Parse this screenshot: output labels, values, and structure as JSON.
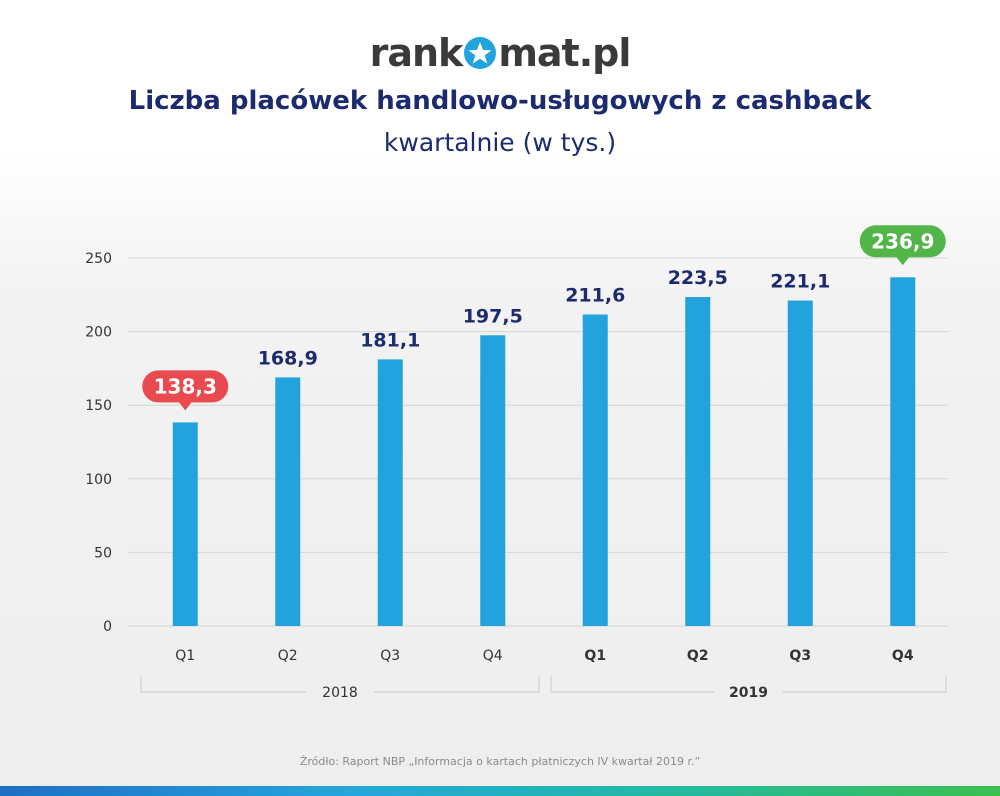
{
  "logo": {
    "left": "rank",
    "right": "mat.pl",
    "icon": "star-icon"
  },
  "title": "Liczba placówek handlowo-usługowych z cashback",
  "subtitle": "kwartalnie (w tys.)",
  "source": "Źródło: Raport NBP „Informacja o kartach płatniczych IV kwartał 2019 r.”",
  "colors": {
    "bar": "#22a3de",
    "label": "#1c2b6e",
    "min_highlight": "#e84a4f",
    "max_highlight": "#52b548",
    "grid": "#d4d4d4",
    "axis_text": "#333333"
  },
  "chart_data": {
    "type": "bar",
    "title": "Liczba placówek handlowo-usługowych z cashback",
    "subtitle": "kwartalnie (w tys.)",
    "ylim": [
      0,
      250
    ],
    "yticks": [
      "0",
      "50",
      "100",
      "150",
      "200",
      "250"
    ],
    "grid": true,
    "categories": [
      "Q1",
      "Q2",
      "Q3",
      "Q4",
      "Q1",
      "Q2",
      "Q3",
      "Q4"
    ],
    "groups": [
      {
        "label": "2018",
        "categories": [
          "Q1",
          "Q2",
          "Q3",
          "Q4"
        ]
      },
      {
        "label": "2019",
        "categories": [
          "Q1",
          "Q2",
          "Q3",
          "Q4"
        ]
      }
    ],
    "values": [
      138.3,
      168.9,
      181.1,
      197.5,
      211.6,
      223.5,
      221.1,
      236.9
    ],
    "value_labels": [
      "138,3",
      "168,9",
      "181,1",
      "197,5",
      "211,6",
      "223,5",
      "221,1",
      "236,9"
    ],
    "highlight_min_index": 0,
    "highlight_max_index": 7
  }
}
